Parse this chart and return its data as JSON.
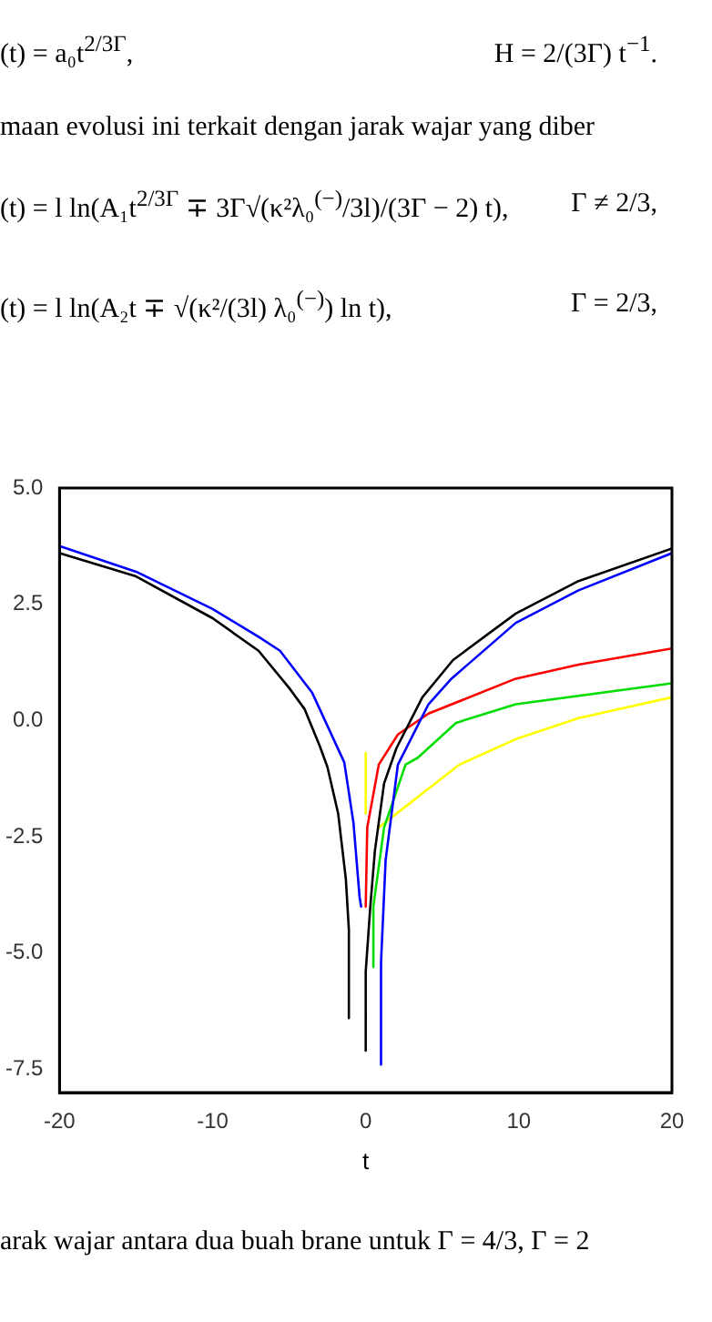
{
  "chart_data": {
    "type": "line",
    "xlabel": "t",
    "annotations": [
      "(t) = a₀t$^{2/3Γ}$,",
      "H = 2/(3Γ) t$^{−1}$.",
      "maan evolusi ini terkait dengan jarak wajar yang diber",
      "(t) = l ln(A₁t$^{2/3Γ}$ ∓ 3Γ√(κ²λ₀$^{(−)}$/3l)/(3Γ − 2) t),",
      "Γ ≠ 2/3,",
      "(t) = l ln(A₂t ∓ √(κ²/(3l) λ₀$^{(−)}$) ln t),",
      "Γ = 2/3,",
      "arak wajar antara dua buah brane untuk Γ = 4/3, Γ = 2"
    ],
    "xlim": [
      -20,
      20
    ],
    "xticks": [
      -20,
      -10,
      0,
      10,
      20
    ],
    "ylim": [
      -8,
      5
    ],
    "yticks": [
      {
        "value": 5,
        "label": "5.0"
      },
      {
        "value": 2.5,
        "label": "2.5"
      },
      {
        "value": 0,
        "label": "0.0"
      },
      {
        "value": -2.5,
        "label": "-2.5"
      },
      {
        "value": -5,
        "label": "-5.0"
      },
      {
        "value": -7.5,
        "label": "-7.5"
      }
    ],
    "grid": false,
    "legend": false,
    "marker": "none",
    "line_style": "solid",
    "series": [
      {
        "color": "#000000",
        "x": [
          -20,
          -15,
          -10,
          -7,
          -5,
          -4,
          -3,
          -2.5,
          -1.8,
          -1.3,
          -1.1,
          -1.1,
          null,
          0,
          0,
          0.3,
          0.6,
          1.2,
          2,
          3.7,
          5.7,
          9.8,
          13.9,
          20
        ],
        "values": [
          3.6,
          3.1,
          2.2,
          1.5,
          0.7,
          0.25,
          -0.55,
          -1.0,
          -2.0,
          -3.4,
          -4.5,
          -6.4,
          null,
          -7.1,
          -5.4,
          -4.0,
          -2.8,
          -1.35,
          -0.6,
          0.5,
          1.3,
          2.3,
          3.0,
          3.7
        ]
      },
      {
        "color": "#0000ff",
        "x": [
          -20,
          -15,
          -10,
          -7,
          -5.6,
          -3.5,
          -1.4,
          -0.8,
          -0.4,
          -0.3,
          null,
          1.0,
          1.0,
          1.3,
          2.1,
          4.1,
          5.6,
          9.8,
          13.9,
          20
        ],
        "values": [
          3.75,
          3.2,
          2.4,
          1.8,
          1.5,
          0.6,
          -0.9,
          -2.2,
          -3.8,
          -4.0,
          null,
          -7.4,
          -5.2,
          -3.0,
          -0.95,
          0.35,
          0.9,
          2.1,
          2.8,
          3.6
        ]
      },
      {
        "color": "#ff0000",
        "x": [
          0,
          0.1,
          0.85,
          2.1,
          4.1,
          9.8,
          13.9,
          20
        ],
        "values": [
          -4.0,
          -2.3,
          -0.95,
          -0.3,
          0.15,
          0.9,
          1.2,
          1.55
        ]
      },
      {
        "color": "#00dd00",
        "x": [
          0.5,
          0.5,
          1.2,
          2.6,
          3.4,
          5.9,
          9.8,
          20
        ],
        "values": [
          -5.3,
          -4.0,
          -2.3,
          -0.95,
          -0.8,
          -0.05,
          0.35,
          0.8
        ]
      },
      {
        "color": "#ffff00",
        "x": [
          0,
          0,
          null,
          0.85,
          2.6,
          6.1,
          9.8,
          13.9,
          20
        ],
        "values": [
          -0.7,
          -2.0,
          null,
          -2.3,
          -1.85,
          -0.95,
          -0.4,
          0.05,
          0.5
        ]
      }
    ]
  }
}
